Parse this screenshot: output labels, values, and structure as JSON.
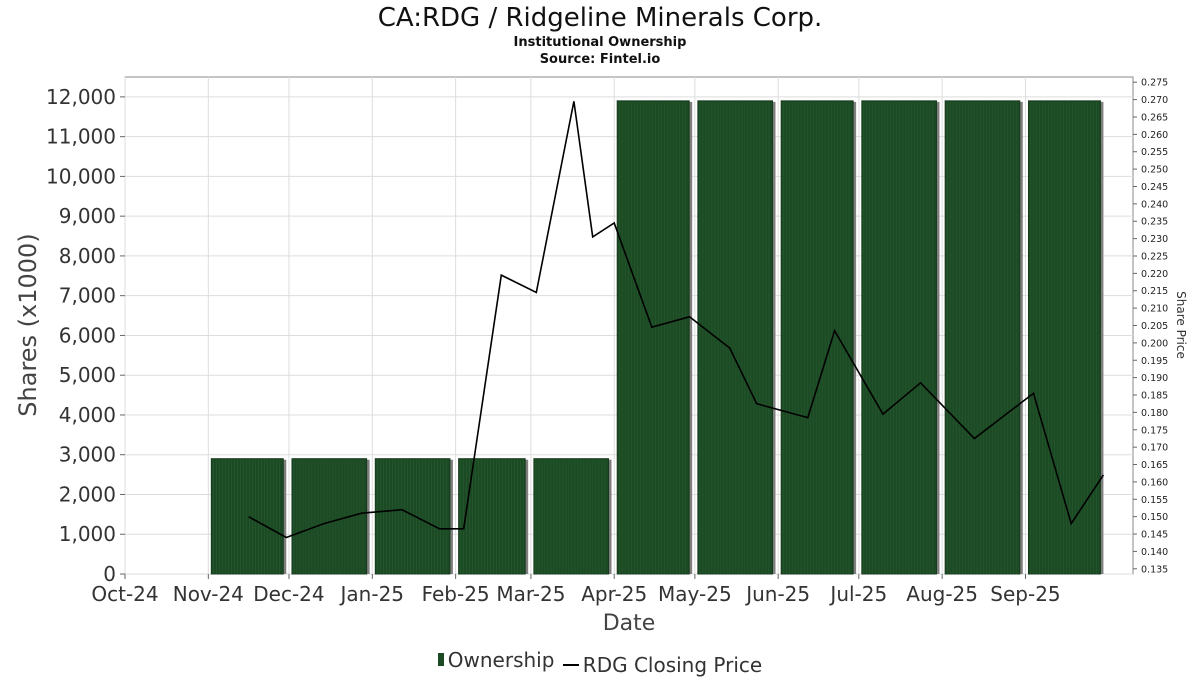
{
  "header": {
    "title": "CA:RDG / Ridgeline Minerals Corp.",
    "subtitle": "Institutional Ownership",
    "source": "Source: Fintel.io"
  },
  "legend": {
    "ownership_label": "Ownership",
    "price_label": "RDG Closing Price"
  },
  "colors": {
    "bar_fill": "#1c4a24",
    "bar_shadow": "#7f7f7f",
    "price_line": "#000000",
    "grid": "#dddddd"
  },
  "chart_data": {
    "type": "bar",
    "title": "CA:RDG / Ridgeline Minerals Corp.",
    "xlabel": "Date",
    "ylabel": "Shares (x1000)",
    "y2label": "Share Price",
    "ylim": [
      0,
      12500
    ],
    "y2lim": [
      0.1335,
      0.2765
    ],
    "grid": true,
    "legend_position": "bottom-center",
    "xticks": [
      "Oct-24",
      "Nov-24",
      "Dec-24",
      "Jan-25",
      "Feb-25",
      "Mar-25",
      "Apr-25",
      "May-25",
      "Jun-25",
      "Jul-25",
      "Aug-25",
      "Sep-25"
    ],
    "yticks": [
      0,
      1000,
      2000,
      3000,
      4000,
      5000,
      6000,
      7000,
      8000,
      9000,
      10000,
      11000,
      12000
    ],
    "y2ticks": [
      0.135,
      0.14,
      0.145,
      0.15,
      0.155,
      0.16,
      0.165,
      0.17,
      0.175,
      0.18,
      0.185,
      0.19,
      0.195,
      0.2,
      0.205,
      0.21,
      0.215,
      0.22,
      0.225,
      0.23,
      0.235,
      0.24,
      0.245,
      0.25,
      0.255,
      0.26,
      0.265,
      0.27,
      0.275
    ],
    "series": [
      {
        "name": "Ownership",
        "type": "bar",
        "axis": "left",
        "periods": [
          {
            "start": "2024-11-01",
            "end": "2024-11-30",
            "value": 2900
          },
          {
            "start": "2024-12-01",
            "end": "2024-12-31",
            "value": 2900
          },
          {
            "start": "2025-01-01",
            "end": "2025-01-31",
            "value": 2900
          },
          {
            "start": "2025-02-01",
            "end": "2025-02-28",
            "value": 2900
          },
          {
            "start": "2025-03-01",
            "end": "2025-03-31",
            "value": 2900
          },
          {
            "start": "2025-04-01",
            "end": "2025-04-30",
            "value": 11900
          },
          {
            "start": "2025-05-01",
            "end": "2025-05-31",
            "value": 11900
          },
          {
            "start": "2025-06-01",
            "end": "2025-06-30",
            "value": 11900
          },
          {
            "start": "2025-07-01",
            "end": "2025-07-31",
            "value": 11900
          },
          {
            "start": "2025-08-01",
            "end": "2025-08-31",
            "value": 11900
          },
          {
            "start": "2025-09-01",
            "end": "2025-09-30",
            "value": 11900
          }
        ]
      },
      {
        "name": "RDG Closing Price",
        "type": "line",
        "axis": "right",
        "x": [
          "2024-11-16",
          "2024-11-30",
          "2024-12-14",
          "2024-12-28",
          "2025-01-12",
          "2025-01-26",
          "2025-02-04",
          "2025-02-18",
          "2025-03-03",
          "2025-03-17",
          "2025-03-24",
          "2025-04-01",
          "2025-04-15",
          "2025-04-29",
          "2025-05-14",
          "2025-05-24",
          "2025-06-12",
          "2025-06-22",
          "2025-07-10",
          "2025-07-24",
          "2025-08-13",
          "2025-09-04",
          "2025-09-18",
          "2025-09-30"
        ],
        "values": [
          0.15,
          0.144,
          0.148,
          0.151,
          0.152,
          0.1465,
          0.1465,
          0.2195,
          0.2145,
          0.2695,
          0.2305,
          0.2345,
          0.2045,
          0.2075,
          0.1985,
          0.1825,
          0.1785,
          0.2035,
          0.1795,
          0.1885,
          0.1725,
          0.1855,
          0.148,
          0.162
        ]
      }
    ]
  }
}
